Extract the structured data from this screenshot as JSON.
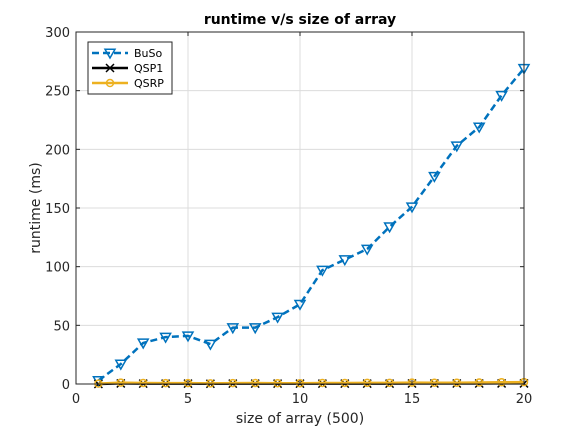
{
  "chart_data": {
    "type": "line",
    "title": "runtime v/s size of array",
    "xlabel": "size of array (500)",
    "ylabel": "runtime (ms)",
    "xlim": [
      0,
      20
    ],
    "ylim": [
      0,
      300
    ],
    "xticks": [
      0,
      5,
      10,
      15,
      20
    ],
    "yticks": [
      0,
      50,
      100,
      150,
      200,
      250,
      300
    ],
    "grid": true,
    "legend_position": "top-left",
    "x": [
      1,
      2,
      3,
      4,
      5,
      6,
      7,
      8,
      9,
      10,
      11,
      12,
      13,
      14,
      15,
      16,
      17,
      18,
      19,
      20
    ],
    "series": [
      {
        "name": "BuSo",
        "color": "#0072bd",
        "line_style": "dashed",
        "marker": "triangle-down",
        "values": [
          3,
          17,
          35,
          40,
          41,
          34,
          48,
          48,
          57,
          68,
          97,
          106,
          115,
          134,
          151,
          177,
          203,
          219,
          246,
          269
        ]
      },
      {
        "name": "QSP1",
        "color": "#000000",
        "line_style": "solid",
        "marker": "x",
        "values": [
          0,
          0.5,
          0.3,
          0.3,
          0.3,
          0.2,
          0.3,
          0.3,
          0.3,
          0.3,
          0.3,
          0.3,
          0.3,
          0.3,
          0.4,
          0.4,
          0.4,
          0.4,
          0.5,
          0.5
        ]
      },
      {
        "name": "QSRP",
        "color": "#edb120",
        "line_style": "solid",
        "marker": "circle",
        "values": [
          0.3,
          1.2,
          0.8,
          0.7,
          0.7,
          0.5,
          0.7,
          0.8,
          0.6,
          0.6,
          0.9,
          0.9,
          1.0,
          1.0,
          1.2,
          1.1,
          1.1,
          1.3,
          1.5,
          1.6
        ]
      }
    ]
  }
}
